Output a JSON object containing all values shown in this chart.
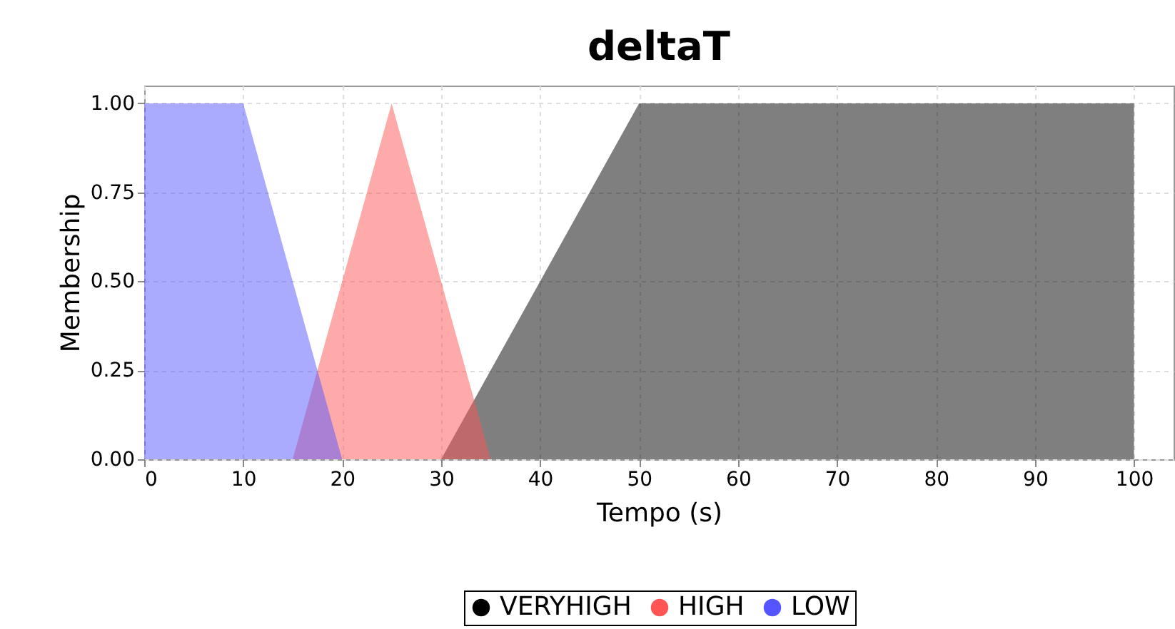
{
  "chart_data": {
    "type": "area",
    "title": "deltaT",
    "xlabel": "Tempo (s)",
    "ylabel": "Membership",
    "xlim": [
      0,
      104
    ],
    "xticks": [
      0,
      10,
      20,
      30,
      40,
      50,
      60,
      70,
      80,
      90,
      100
    ],
    "ylim": [
      0,
      1.05
    ],
    "yticks": [
      {
        "value": 0,
        "label": "0.00"
      },
      {
        "value": 0.25,
        "label": "0.25"
      },
      {
        "value": 0.5,
        "label": "0.50"
      },
      {
        "value": 0.75,
        "label": "0.75"
      },
      {
        "value": 1,
        "label": "1.00"
      }
    ],
    "grid": true,
    "legend": "bottom",
    "series": [
      {
        "name": "VERYHIGH",
        "color": "#000000",
        "x": [
          30,
          50,
          100
        ],
        "values": [
          0,
          1,
          1
        ]
      },
      {
        "name": "HIGH",
        "color": "#ff5555",
        "x": [
          15,
          25,
          35
        ],
        "values": [
          0,
          1,
          0
        ]
      },
      {
        "name": "LOW",
        "color": "#5555ff",
        "x": [
          0,
          10,
          20
        ],
        "values": [
          1,
          1,
          0
        ]
      }
    ]
  }
}
